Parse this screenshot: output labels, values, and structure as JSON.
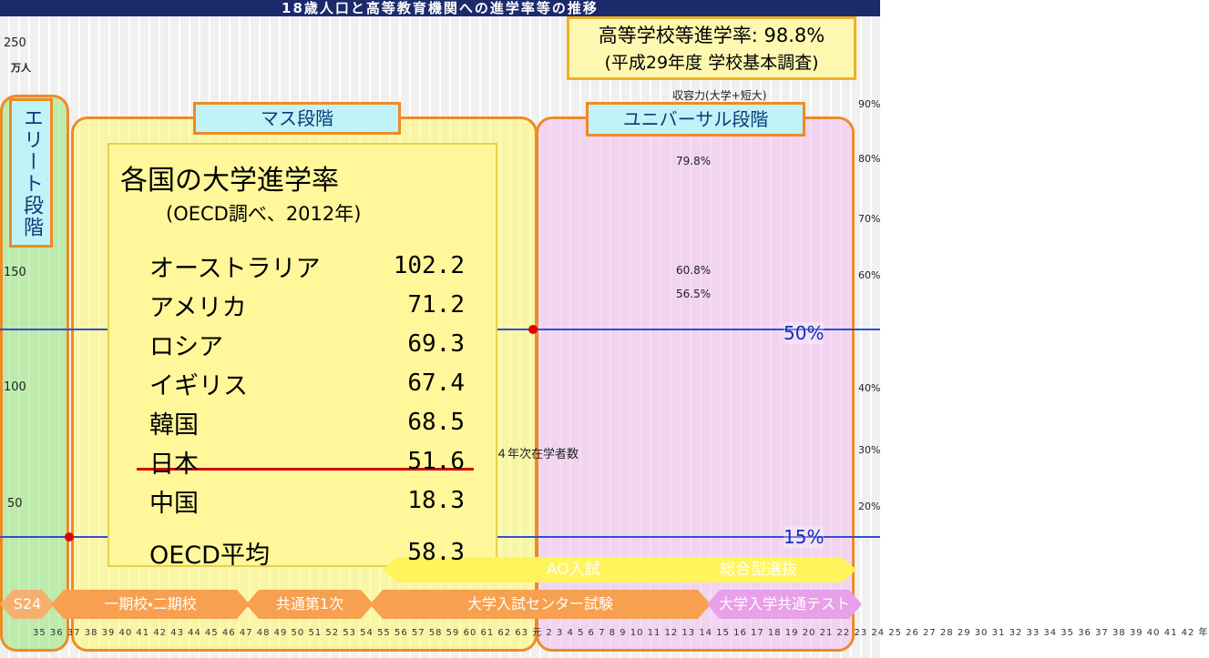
{
  "header": {
    "title": "18歳人口と高等教育機関への進学率等の推移"
  },
  "callout": {
    "line1": "高等学校等進学率: 98.8%",
    "line2": "(平成29年度 学校基本調査)"
  },
  "stages": [
    "エリート段階",
    "マス段階",
    "ユニバーサル段階"
  ],
  "oecd": {
    "title": "各国の大学進学率",
    "subtitle": "(OECD調べ、2012年)",
    "rows": [
      [
        "オーストラリア",
        "102.2"
      ],
      [
        "アメリカ",
        "71.2"
      ],
      [
        "ロシア",
        "69.3"
      ],
      [
        "イギリス",
        "67.4"
      ],
      [
        "韓国",
        "68.5"
      ],
      [
        "日本",
        "51.6"
      ],
      [
        "中国",
        "18.3"
      ],
      [
        "OECD平均",
        "58.3"
      ]
    ]
  },
  "thresholds": [
    "50%",
    "15%"
  ],
  "admissions": [
    "AO入試",
    "総合型選抜"
  ],
  "eras": [
    "S24",
    "一期校・二期校",
    "共通第1次",
    "大学入試センター試験",
    "大学入学共通テスト"
  ],
  "left_axis": {
    "unit": "万人",
    "ticks": [
      "250",
      "150",
      "100",
      "50"
    ]
  },
  "right_axis": {
    "ticks": [
      "90%",
      "80%",
      "70%",
      "60%",
      "40%",
      "30%",
      "20%"
    ]
  },
  "chart_labels": {
    "capacity": "収容力(大学+短大)",
    "rate_799": "79.8%",
    "rate_608": "60.8%",
    "rate_565": "56.5%",
    "kosen": "高専４年次在学者数"
  },
  "year_axis": "35 36 37 38 39 40 41 42 43 44 45 46 47 48 49 50 51 52 53 54 55 56 57 58 59 60 61 62 63 元 2 3 4 5 6 7 8 9 10 11 12 13 14 15 16 17 18 19 20 21 22 23 24 25 26 27 28 29 30 31 32 33 34 35 36 37 38 39 40 41 42 年"
}
